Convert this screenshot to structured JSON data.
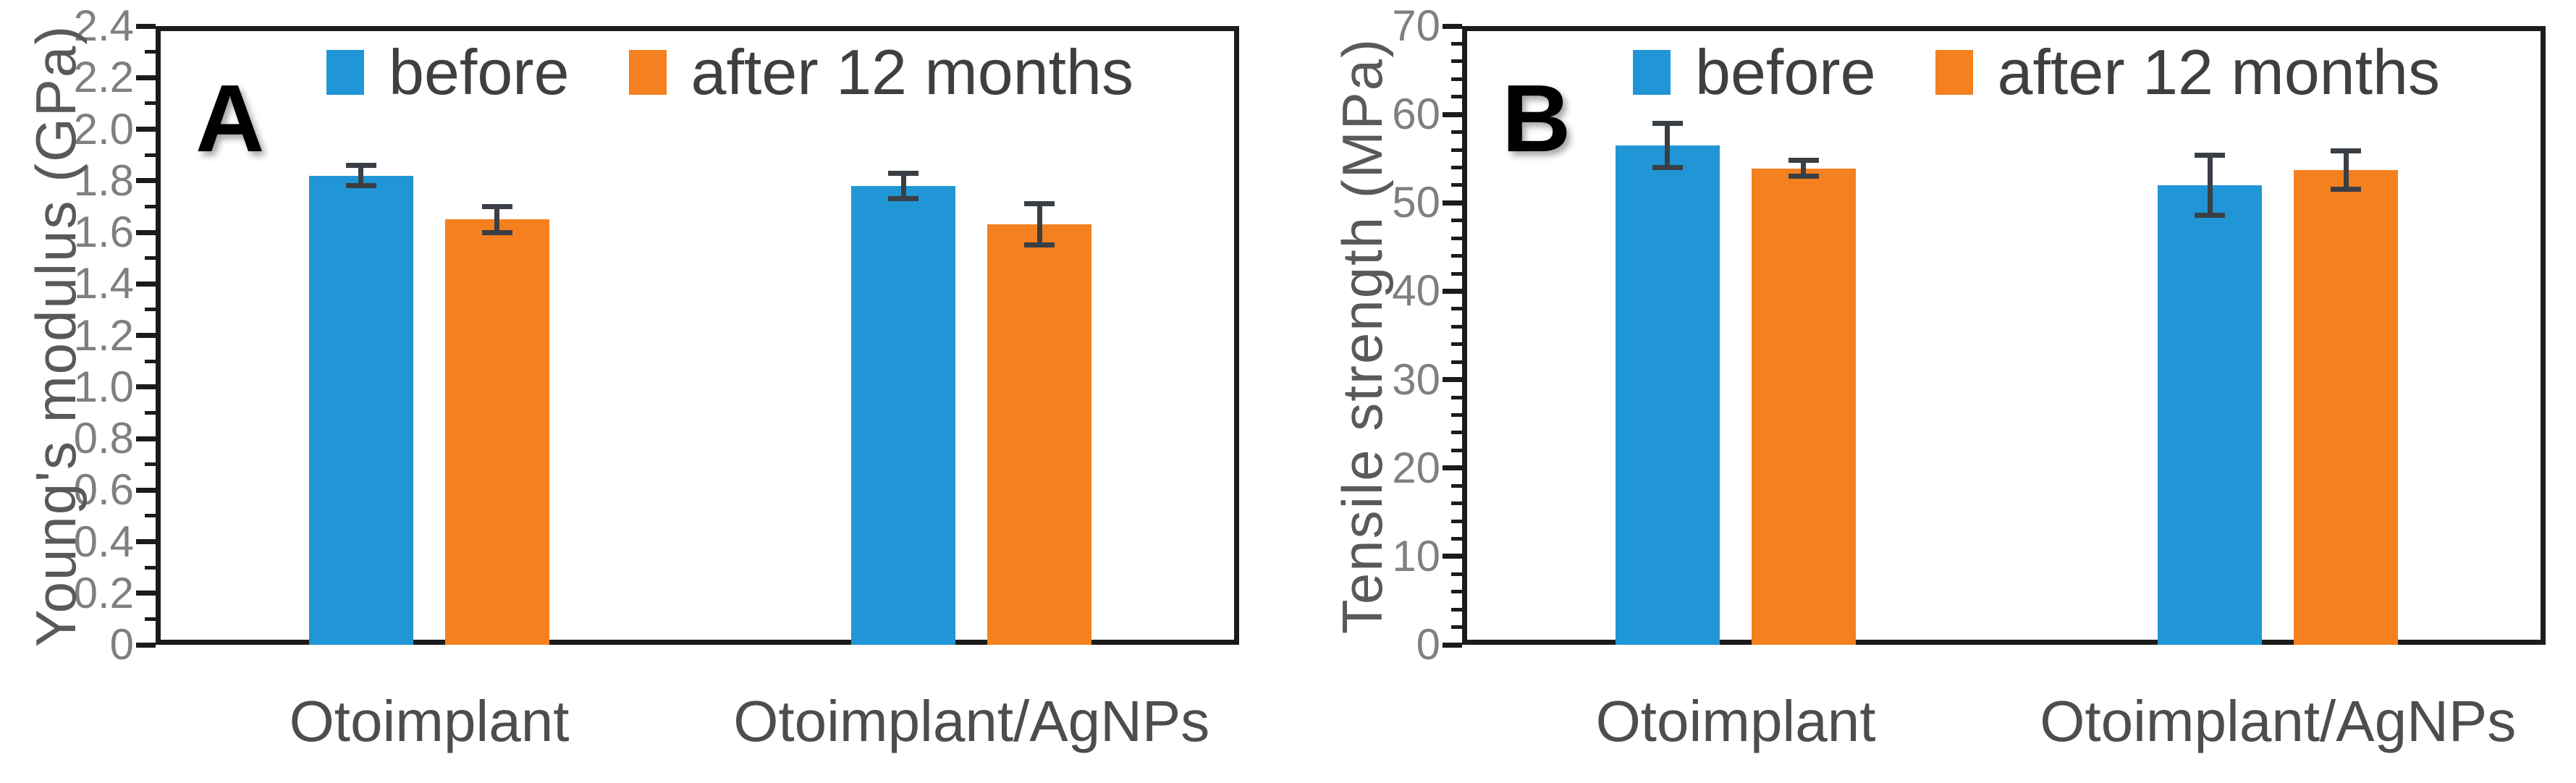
{
  "figure_title": "",
  "colors": {
    "before_series": "#2196D6",
    "after_series": "#F5801F",
    "error_bar": "#3a3f45",
    "spine": "#1b1b1b",
    "tick_label_text": "#7f7f7f",
    "axis_label_text": "#595959",
    "category_text": "#4d4d4d",
    "legend_text": "#3f3f3f",
    "panel_letter_text": "#000000",
    "background": "#ffffff"
  },
  "legend": {
    "before_label": "before",
    "after_label": "after 12 months"
  },
  "chart_data": [
    {
      "type": "bar",
      "panel_letter": "A",
      "title": "",
      "xlabel": "",
      "ylabel": "Young's modulus (GPa)",
      "categories": [
        "Otoimplant",
        "Otoimplant/AgNPs"
      ],
      "series": [
        {
          "name": "before",
          "color": "#2196D6",
          "values": [
            1.82,
            1.78
          ],
          "errors": [
            0.04,
            0.05
          ]
        },
        {
          "name": "after 12 months",
          "color": "#F5801F",
          "values": [
            1.65,
            1.63
          ],
          "errors": [
            0.05,
            0.08
          ]
        }
      ],
      "ylim": [
        0,
        2.4
      ],
      "ytick_step": 0.2,
      "yminor_step": 0.1,
      "ytick_decimals": 1,
      "ytick_labels": [
        "0",
        "0.2",
        "0.4",
        "0.6",
        "0.8",
        "1.0",
        "1.2",
        "1.4",
        "1.6",
        "1.8",
        "2.0",
        "2.2",
        "2.4"
      ],
      "grid": false,
      "legend_position": "top-center"
    },
    {
      "type": "bar",
      "panel_letter": "B",
      "title": "",
      "xlabel": "",
      "ylabel": "Tensile strength (MPa)",
      "categories": [
        "Otoimplant",
        "Otoimplant/AgNPs"
      ],
      "series": [
        {
          "name": "before",
          "color": "#2196D6",
          "values": [
            56.5,
            52.0
          ],
          "errors": [
            2.5,
            3.4
          ]
        },
        {
          "name": "after 12 months",
          "color": "#F5801F",
          "values": [
            53.9,
            53.7
          ],
          "errors": [
            0.9,
            2.2
          ]
        }
      ],
      "ylim": [
        0,
        70
      ],
      "ytick_step": 10,
      "yminor_step": 2,
      "ytick_decimals": 0,
      "ytick_labels": [
        "0",
        "10",
        "20",
        "30",
        "40",
        "50",
        "60",
        "70"
      ],
      "grid": false,
      "legend_position": "top-center"
    }
  ]
}
